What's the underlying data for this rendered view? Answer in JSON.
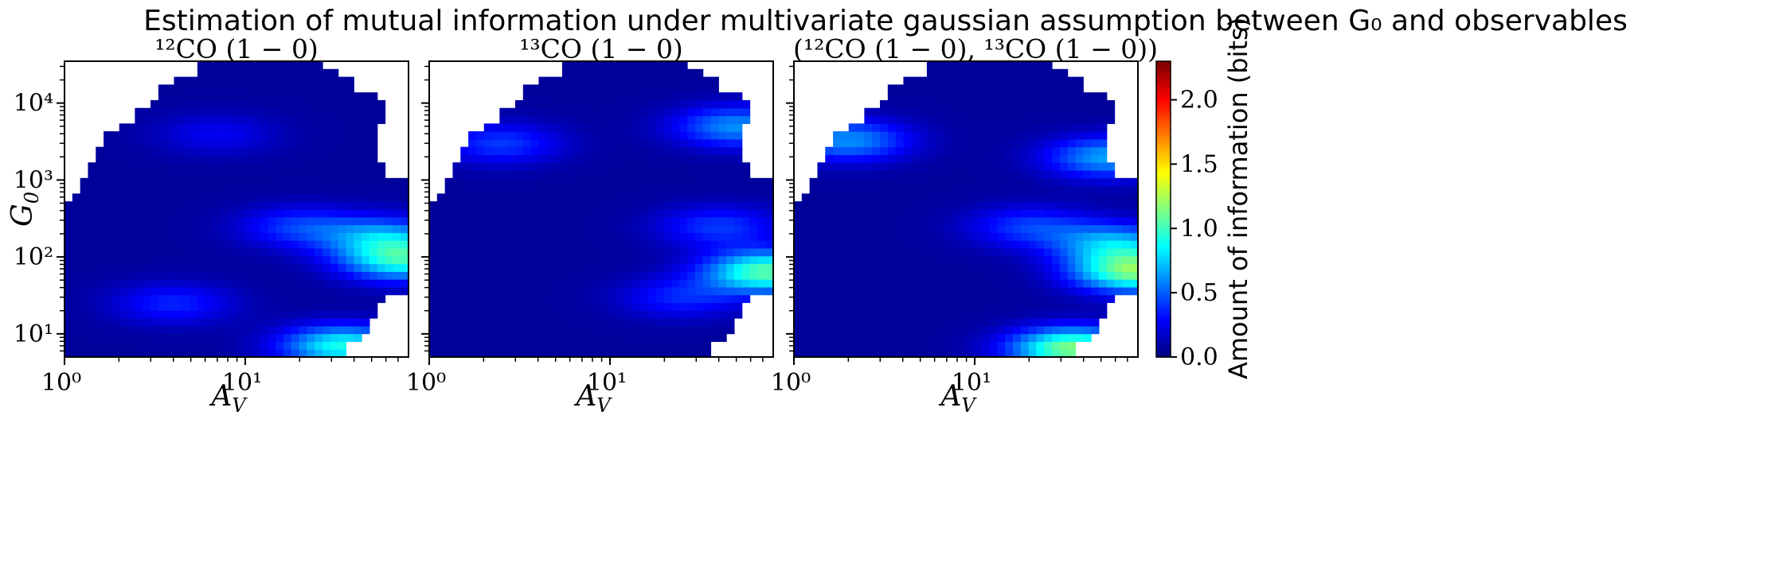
{
  "suptitle": "Estimation of mutual information under multivariate gaussian assumption between G₀ and observables",
  "chart_data": [
    {
      "type": "heatmap",
      "title": "¹²CO (1 − 0)",
      "xlabel": "A_V",
      "ylabel": "G₀",
      "xscale": "log",
      "yscale": "log",
      "xlim": [
        1,
        80
      ],
      "ylim": [
        5,
        35000
      ],
      "xticks": [
        "10⁰",
        "10¹"
      ],
      "yticks": [
        "10¹",
        "10²",
        "10³",
        "10⁴"
      ],
      "features": [
        {
          "x": 35,
          "y": 7,
          "value": 0.85
        },
        {
          "x": 75,
          "y": 90,
          "value": 0.8
        },
        {
          "x": 60,
          "y": 180,
          "value": 0.55
        },
        {
          "x": 20,
          "y": 250,
          "value": 0.35
        },
        {
          "x": 4,
          "y": 25,
          "value": 0.3
        },
        {
          "x": 7,
          "y": 4000,
          "value": 0.2
        }
      ]
    },
    {
      "type": "heatmap",
      "title": "¹³CO (1 − 0)",
      "xlabel": "A_V",
      "ylabel": "",
      "xscale": "log",
      "yscale": "log",
      "xlim": [
        1,
        80
      ],
      "ylim": [
        5,
        35000
      ],
      "xticks": [
        "10⁰",
        "10¹"
      ],
      "yticks": [],
      "features": [
        {
          "x": 75,
          "y": 65,
          "value": 1.0
        },
        {
          "x": 50,
          "y": 5000,
          "value": 0.55
        },
        {
          "x": 2.5,
          "y": 3000,
          "value": 0.35
        },
        {
          "x": 40,
          "y": 250,
          "value": 0.35
        },
        {
          "x": 25,
          "y": 30,
          "value": 0.3
        }
      ]
    },
    {
      "type": "heatmap",
      "title": "(¹²CO (1 − 0), ¹³CO (1 − 0))",
      "xlabel": "A_V",
      "ylabel": "",
      "xscale": "log",
      "yscale": "log",
      "xlim": [
        1,
        80
      ],
      "ylim": [
        5,
        35000
      ],
      "xticks": [
        "10⁰",
        "10¹"
      ],
      "yticks": [],
      "features": [
        {
          "x": 35,
          "y": 6.5,
          "value": 1.1
        },
        {
          "x": 78,
          "y": 65,
          "value": 1.05
        },
        {
          "x": 60,
          "y": 150,
          "value": 0.6
        },
        {
          "x": 55,
          "y": 2000,
          "value": 0.6
        },
        {
          "x": 2.0,
          "y": 3300,
          "value": 0.55
        },
        {
          "x": 20,
          "y": 250,
          "value": 0.35
        }
      ]
    }
  ],
  "colorbar": {
    "label": "Amount of information (bits)",
    "range": [
      0,
      2.3
    ],
    "ticks": [
      "0.0",
      "0.5",
      "1.0",
      "1.5",
      "2.0"
    ],
    "colormap": "jet"
  },
  "axis_labels": {
    "x": "A",
    "x_sub": "V",
    "y": "G",
    "y_sub": "0"
  }
}
